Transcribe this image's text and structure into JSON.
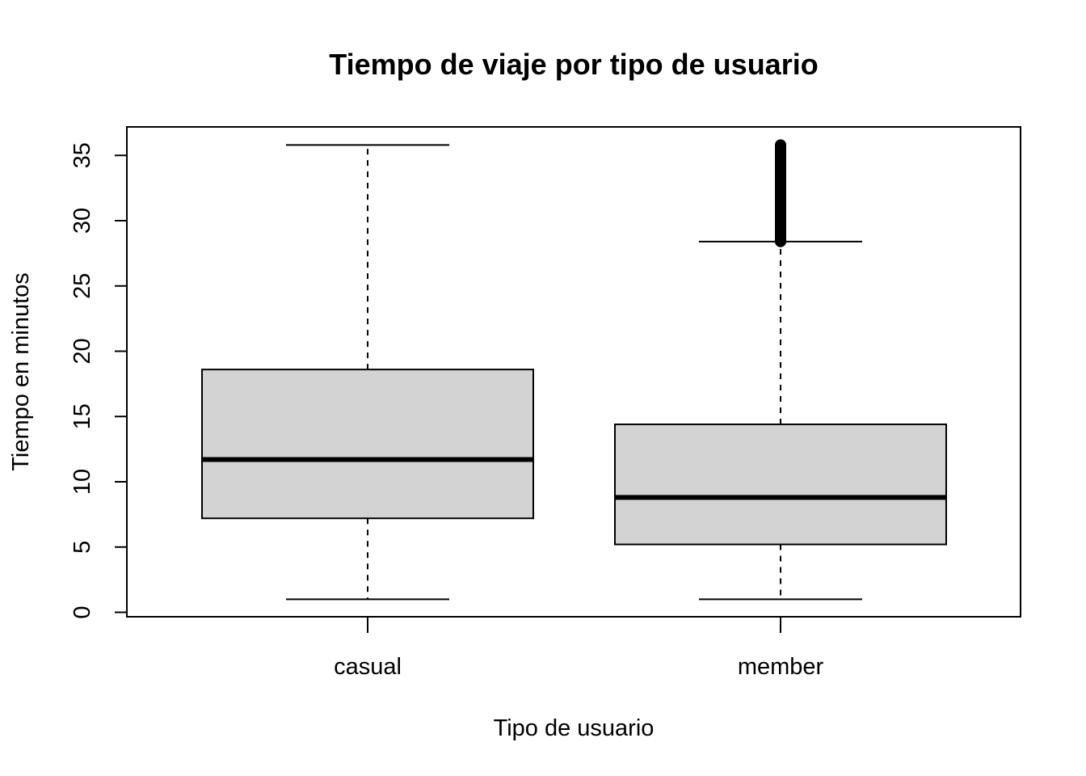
{
  "chart_data": {
    "type": "boxplot",
    "title": "Tiempo de viaje por tipo de usuario",
    "xlabel": "Tipo de usuario",
    "ylabel": "Tiempo en minutos",
    "categories": [
      "casual",
      "member"
    ],
    "yticks": [
      0,
      5,
      10,
      15,
      20,
      25,
      30,
      35
    ],
    "ylim": [
      0,
      36
    ],
    "boxes": [
      {
        "category": "casual",
        "whisker_low": 1.0,
        "q1": 7.2,
        "median": 11.7,
        "q3": 18.6,
        "whisker_high": 35.8,
        "outliers_range": null
      },
      {
        "category": "member",
        "whisker_low": 1.0,
        "q1": 5.2,
        "median": 8.8,
        "q3": 14.4,
        "whisker_high": 28.4,
        "outliers_range": [
          28.4,
          35.8
        ]
      }
    ],
    "box_fill": "#d3d3d3",
    "line_color": "#000000"
  }
}
